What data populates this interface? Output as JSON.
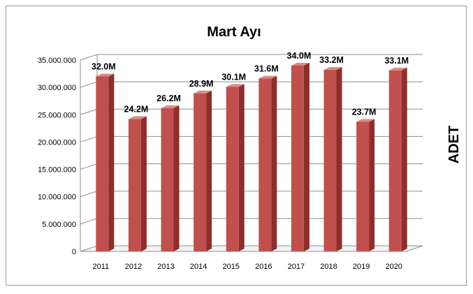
{
  "chart_data": {
    "type": "bar",
    "title": "Mart Ayı",
    "xlabel": "",
    "ylabel": "ADET",
    "categories": [
      "2011",
      "2012",
      "2013",
      "2014",
      "2015",
      "2016",
      "2017",
      "2018",
      "2019",
      "2020"
    ],
    "values": [
      32000000,
      24200000,
      26200000,
      28900000,
      30100000,
      31600000,
      34000000,
      33200000,
      23700000,
      33100000
    ],
    "data_labels": [
      "32.0M",
      "24.2M",
      "26.2M",
      "28.9M",
      "30.1M",
      "31.6M",
      "34.0M",
      "33.2M",
      "23.7M",
      "33.1M"
    ],
    "ylim": [
      0,
      35000000
    ],
    "yticks": [
      0,
      5000000,
      10000000,
      15000000,
      20000000,
      25000000,
      30000000,
      35000000
    ],
    "ytick_labels": [
      "0",
      "5.000.000",
      "10.000.000",
      "15.000.000",
      "20.000.000",
      "25.000.000",
      "30.000.000",
      "35.000.000"
    ],
    "grid": true,
    "legend": "none",
    "style": "3d-column",
    "colors": {
      "bar_front": "#c0504d",
      "bar_side": "#8c2f2c",
      "bar_top": "#d98a88",
      "grid": "#8c8c8c",
      "border": "#9a9a9a"
    }
  }
}
